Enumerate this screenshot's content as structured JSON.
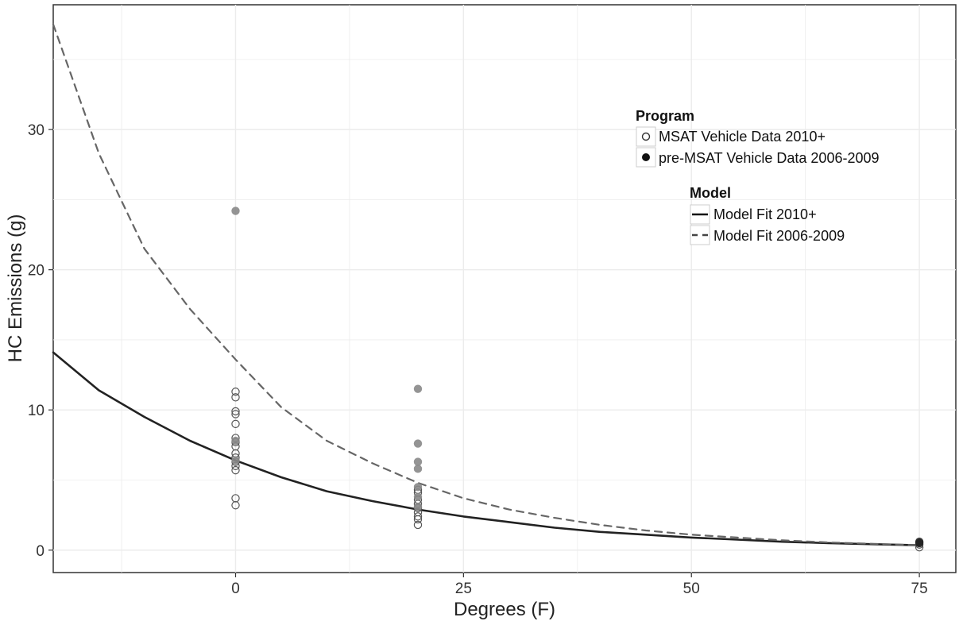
{
  "chart_data": {
    "type": "scatter",
    "xlabel": "Degrees (F)",
    "ylabel": "HC Emissions (g)",
    "xlim": [
      -20,
      79
    ],
    "ylim": [
      -1.6,
      38.9
    ],
    "x_ticks": [
      0,
      25,
      50,
      75
    ],
    "y_ticks": [
      0,
      10,
      20,
      30
    ],
    "grid": true,
    "legends": [
      {
        "title": "Program",
        "placement": "top-right",
        "entries": [
          {
            "label": "MSAT Vehicle Data 2010+",
            "marker": "open-circle"
          },
          {
            "label": "pre-MSAT Vehicle Data 2006-2009",
            "marker": "filled-circle"
          }
        ]
      },
      {
        "title": "Model",
        "placement": "top-right",
        "entries": [
          {
            "label": "Model Fit 2010+",
            "line": "solid"
          },
          {
            "label": "Model Fit 2006-2009",
            "line": "dashed"
          }
        ]
      }
    ],
    "series": [
      {
        "name": "MSAT Vehicle Data 2010+",
        "kind": "points",
        "marker": "open-circle",
        "points": [
          [
            0,
            11.3
          ],
          [
            0,
            10.9
          ],
          [
            0,
            9.9
          ],
          [
            0,
            9.7
          ],
          [
            0,
            9.0
          ],
          [
            0,
            8.0
          ],
          [
            0,
            7.7
          ],
          [
            0,
            7.4
          ],
          [
            0,
            6.9
          ],
          [
            0,
            6.6
          ],
          [
            0,
            6.3
          ],
          [
            0,
            6.0
          ],
          [
            0,
            5.7
          ],
          [
            0,
            3.7
          ],
          [
            0,
            3.2
          ],
          [
            20,
            4.3
          ],
          [
            20,
            4.1
          ],
          [
            20,
            3.6
          ],
          [
            20,
            3.3
          ],
          [
            20,
            3.0
          ],
          [
            20,
            2.7
          ],
          [
            20,
            2.4
          ],
          [
            20,
            2.2
          ],
          [
            20,
            1.8
          ],
          [
            75,
            0.4
          ],
          [
            75,
            0.2
          ]
        ]
      },
      {
        "name": "pre-MSAT Vehicle Data 2006-2009",
        "kind": "points",
        "marker": "filled-circle",
        "points": [
          [
            0,
            24.2
          ],
          [
            0,
            7.8
          ],
          [
            0,
            6.4
          ],
          [
            20,
            11.5
          ],
          [
            20,
            7.6
          ],
          [
            20,
            6.3
          ],
          [
            20,
            5.8
          ],
          [
            20,
            4.5
          ],
          [
            20,
            3.8
          ],
          [
            20,
            3.1
          ],
          [
            75,
            0.6
          ],
          [
            75,
            0.5
          ]
        ]
      },
      {
        "name": "Model Fit 2010+",
        "kind": "line",
        "style": "solid",
        "points": [
          [
            -20,
            14.1
          ],
          [
            -15,
            11.4
          ],
          [
            -10,
            9.5
          ],
          [
            -5,
            7.8
          ],
          [
            0,
            6.4
          ],
          [
            5,
            5.2
          ],
          [
            10,
            4.2
          ],
          [
            15,
            3.5
          ],
          [
            20,
            2.9
          ],
          [
            25,
            2.4
          ],
          [
            30,
            2.0
          ],
          [
            35,
            1.6
          ],
          [
            40,
            1.3
          ],
          [
            45,
            1.1
          ],
          [
            50,
            0.9
          ],
          [
            55,
            0.75
          ],
          [
            60,
            0.6
          ],
          [
            65,
            0.5
          ],
          [
            70,
            0.42
          ],
          [
            75,
            0.35
          ]
        ]
      },
      {
        "name": "Model Fit 2006-2009",
        "kind": "line",
        "style": "dashed",
        "points": [
          [
            -20,
            37.5
          ],
          [
            -15,
            28.3
          ],
          [
            -10,
            21.5
          ],
          [
            -5,
            17.2
          ],
          [
            0,
            13.6
          ],
          [
            5,
            10.2
          ],
          [
            10,
            7.8
          ],
          [
            15,
            6.2
          ],
          [
            20,
            4.8
          ],
          [
            25,
            3.7
          ],
          [
            30,
            2.9
          ],
          [
            35,
            2.3
          ],
          [
            40,
            1.8
          ],
          [
            45,
            1.4
          ],
          [
            50,
            1.1
          ],
          [
            55,
            0.9
          ],
          [
            60,
            0.7
          ],
          [
            65,
            0.55
          ],
          [
            70,
            0.45
          ],
          [
            75,
            0.35
          ]
        ]
      }
    ],
    "colors": {
      "open_point_stroke": "#555555",
      "filled_point": "#888888",
      "filled_point_dark": "#222222",
      "solid_line": "#222222",
      "dashed_line": "#666666",
      "grid": "#ececec",
      "panel_border": "#333333"
    }
  }
}
